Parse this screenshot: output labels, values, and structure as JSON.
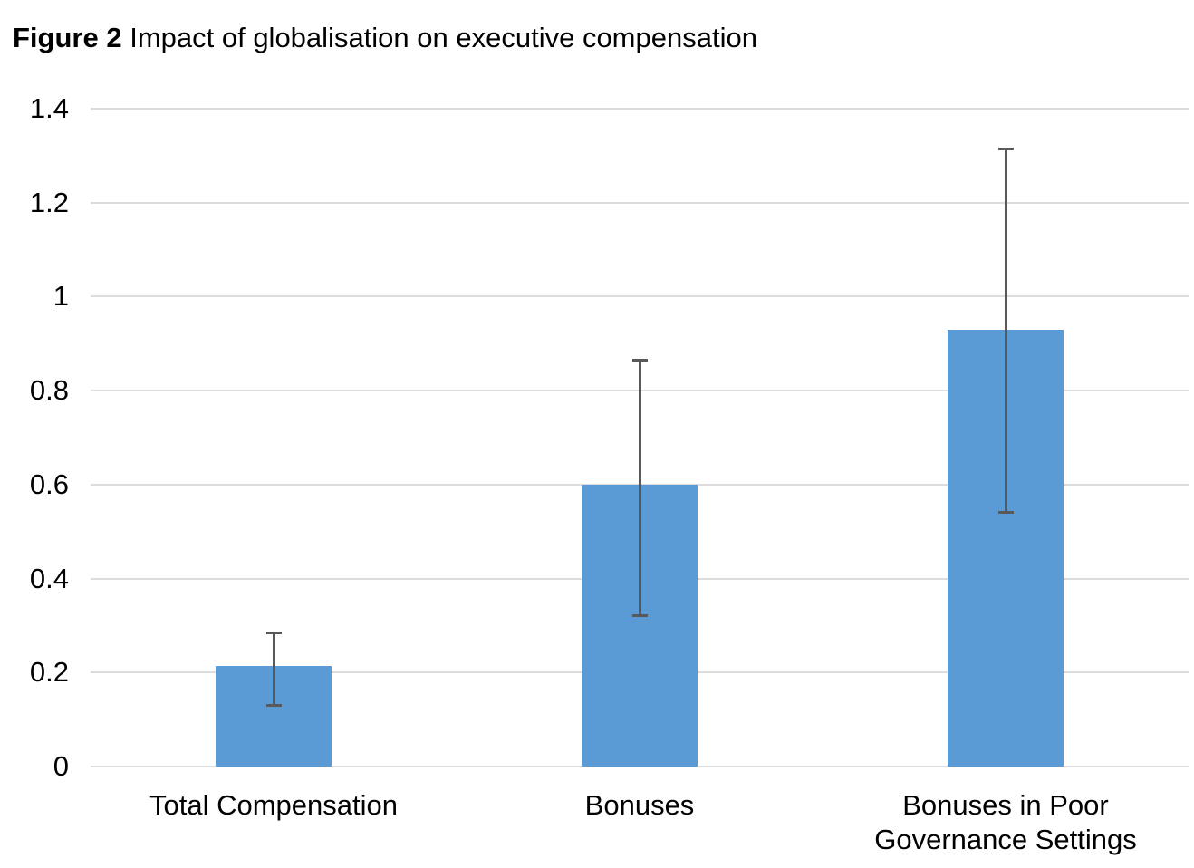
{
  "title": {
    "prefix": "Figure 2",
    "rest": " Impact of globalisation on executive compensation"
  },
  "chart_data": {
    "type": "bar",
    "title": "Figure 2 Impact of globalisation on executive compensation",
    "categories": [
      "Total Compensation",
      "Bonuses",
      "Bonuses in Poor Governance Settings"
    ],
    "category_lines": [
      [
        "Total Compensation"
      ],
      [
        "Bonuses"
      ],
      [
        "Bonuses in Poor",
        "Governance Settings"
      ]
    ],
    "values": [
      0.215,
      0.6,
      0.93
    ],
    "error_low": [
      0.13,
      0.32,
      0.54
    ],
    "error_high": [
      0.285,
      0.865,
      1.315
    ],
    "xlabel": "",
    "ylabel": "",
    "ylim": [
      0,
      1.4
    ],
    "ytick_interval": 0.2,
    "ytick_labels": [
      "0",
      "0.2",
      "0.4",
      "0.6",
      "0.8",
      "1",
      "1.2",
      "1.4"
    ],
    "grid": true,
    "legend": false,
    "bar_color": "#5B9BD5",
    "error_color": "#595959",
    "gridline_color": "#DCDCDC",
    "text_color": "#000000"
  }
}
